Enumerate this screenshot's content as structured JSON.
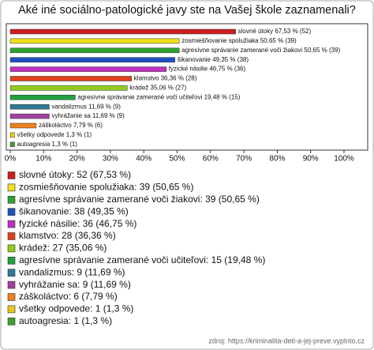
{
  "chart_data": {
    "type": "bar",
    "title": "Aké iné sociálno-patologické javy ste na Vašej škole zaznamenali?",
    "categories": [
      "slovné útoky",
      "zosmiešňovanie spolužiaka",
      "agresívne správanie zamerané voči žiakovi",
      "šikanovanie",
      "fyzické násilie",
      "klamstvo",
      "krádež",
      "agresívne správanie zamerané voči učiteľovi",
      "vandalizmus",
      "vyhrážanie sa",
      "záškoláctvo",
      "všetky odpovede",
      "autoagresia"
    ],
    "values": [
      67.53,
      50.65,
      50.65,
      49.35,
      46.75,
      36.36,
      35.06,
      19.48,
      11.69,
      11.69,
      7.79,
      1.3,
      1.3
    ],
    "value_labels": [
      "slovné útoky 67,53 % (52)",
      "zosmiešňovanie spolužiaka 50,65 % (39)",
      "agresívne správanie zamerané voči žiakovi 50,65 % (39)",
      "šikanovanie 49,35 % (38)",
      "fyzické násilie 46,75 % (36)",
      "klamstvo 36,36 % (28)",
      "krádež 35,06 % (27)",
      "agresívne správanie zamerané voči učiteľovi 19,48 % (15)",
      "vandalizmus 11,69 % (9)",
      "vyhrážanie sa 11,69 % (9)",
      "záškoláctvo 7,79 % (6)",
      "všetky odpovede 1,3 % (1)",
      "autoagresia 1,3 % (1)"
    ],
    "legend_labels": [
      "slovné útoky: 52 (67,53 %)",
      "zosmiešňovanie spolužiaka: 39 (50,65 %)",
      "agresívne správanie zamerané voči žiakovi: 39 (50,65 %)",
      "šikanovanie: 38 (49,35 %)",
      "fyzické násilie: 36 (46,75 %)",
      "klamstvo: 28 (36,36 %)",
      "krádež: 27 (35,06 %)",
      "agresívne správanie zamerané voči učiteľovi: 15 (19,48 %)",
      "vandalizmus: 9 (11,69 %)",
      "vyhrážanie sa: 9 (11,69 %)",
      "záškoláctvo: 6 (7,79 %)",
      "všetky odpovede: 1 (1,3 %)",
      "autoagresia: 1 (1,3 %)"
    ],
    "colors": [
      "#cc2020",
      "#f0e020",
      "#30a030",
      "#2050c0",
      "#c030c0",
      "#e04018",
      "#90cc20",
      "#20a040",
      "#307898",
      "#a040a0",
      "#ee8020",
      "#e8c820",
      "#40a030"
    ],
    "xlim": [
      0,
      100
    ],
    "xticks": [
      {
        "value": 0,
        "label": "0%"
      },
      {
        "value": 10,
        "label": "10%"
      },
      {
        "value": 20,
        "label": "20%"
      },
      {
        "value": 30,
        "label": "30%"
      },
      {
        "value": 40,
        "label": "40%"
      },
      {
        "value": 50,
        "label": "50%"
      },
      {
        "value": 60,
        "label": "60%"
      },
      {
        "value": 70,
        "label": "70%"
      },
      {
        "value": 80,
        "label": "80%"
      },
      {
        "value": 90,
        "label": "90%"
      },
      {
        "value": 100,
        "label": "100%"
      }
    ],
    "source": "zdroj: https://kriminalita-deti-a-jej-preve.vyplnto.cz"
  }
}
